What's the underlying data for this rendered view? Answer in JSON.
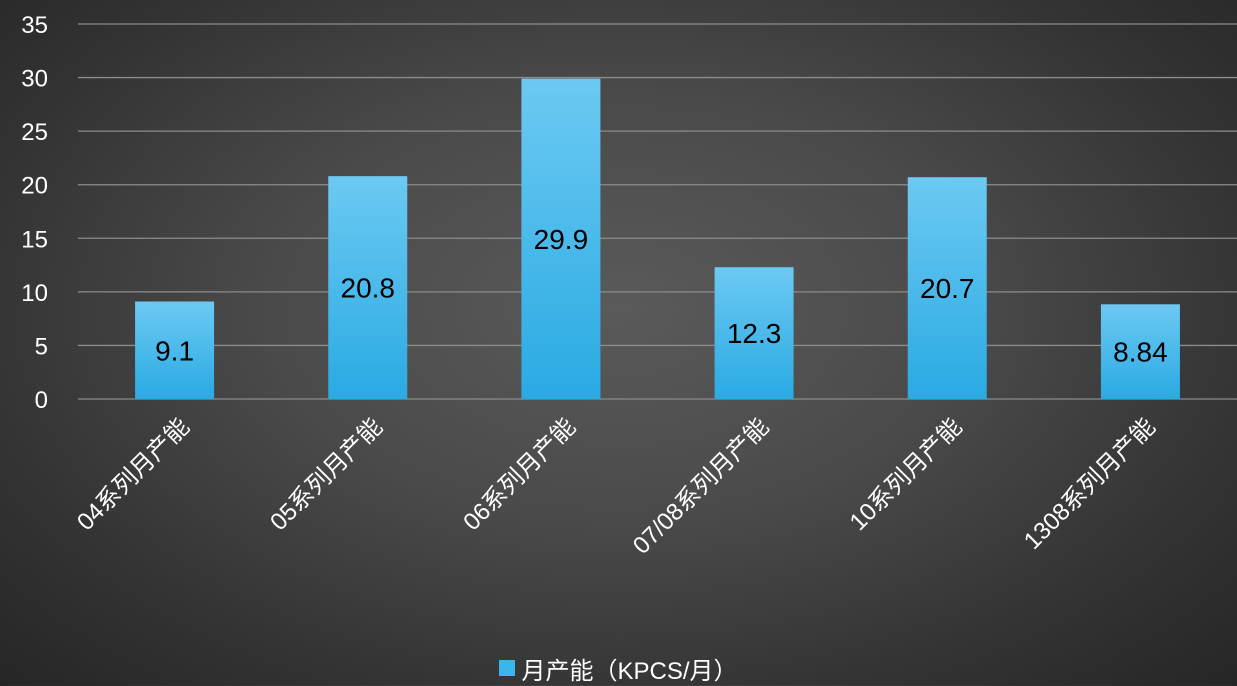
{
  "chart_data": {
    "type": "bar",
    "categories": [
      "04系列月产能",
      "05系列月产能",
      "06系列月产能",
      "07/08系列月产能",
      "10系列月产能",
      "1308系列月产能"
    ],
    "series": [
      {
        "name": "月产能（KPCS/月）",
        "values": [
          9.1,
          20.8,
          29.9,
          12.3,
          20.7,
          8.84
        ]
      }
    ],
    "value_labels": [
      "9.1",
      "20.8",
      "29.9",
      "12.3",
      "20.7",
      "8.84"
    ],
    "ylim": [
      0,
      35
    ],
    "yticks": [
      0,
      5,
      10,
      15,
      20,
      25,
      30,
      35
    ],
    "grid": true,
    "legend_position": "bottom",
    "colors": {
      "bar_top": "#6cc9f2",
      "bar_bottom": "#2aaae3",
      "legend": "#3bb6ea",
      "grid": "#8c8c8c",
      "text": "#ffffff",
      "label": "#000000"
    }
  }
}
